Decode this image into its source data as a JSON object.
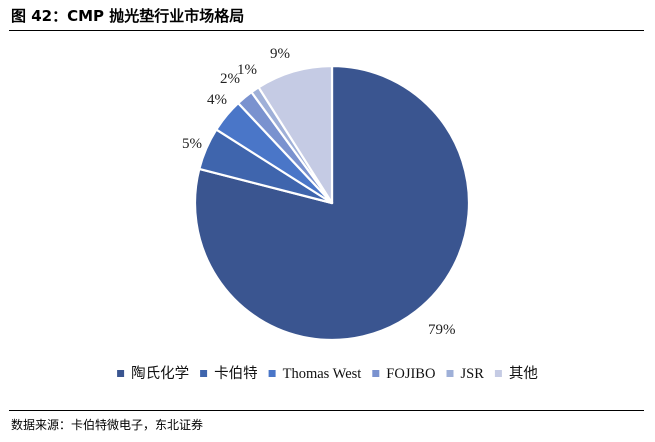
{
  "title": "图 42：CMP 抛光垫行业市场格局",
  "source": "数据来源：卡伯特微电子，东北证券",
  "chart_data": {
    "type": "pie",
    "start_angle_deg": 0,
    "direction": "clockwise",
    "legend_position": "bottom",
    "slices": [
      {
        "name": "陶氏化学",
        "value": 79,
        "label": "79%",
        "color": "#3a5590"
      },
      {
        "name": "卡伯特",
        "value": 5,
        "label": "5%",
        "color": "#3f65ad"
      },
      {
        "name": "Thomas West",
        "value": 4,
        "label": "4%",
        "color": "#4a76c8"
      },
      {
        "name": "FOJIBO",
        "value": 2,
        "label": "2%",
        "color": "#7a92cf"
      },
      {
        "name": "JSR",
        "value": 1,
        "label": "1%",
        "color": "#9fb0d8"
      },
      {
        "name": "其他",
        "value": 9,
        "label": "9%",
        "color": "#c5cbe4"
      }
    ]
  }
}
